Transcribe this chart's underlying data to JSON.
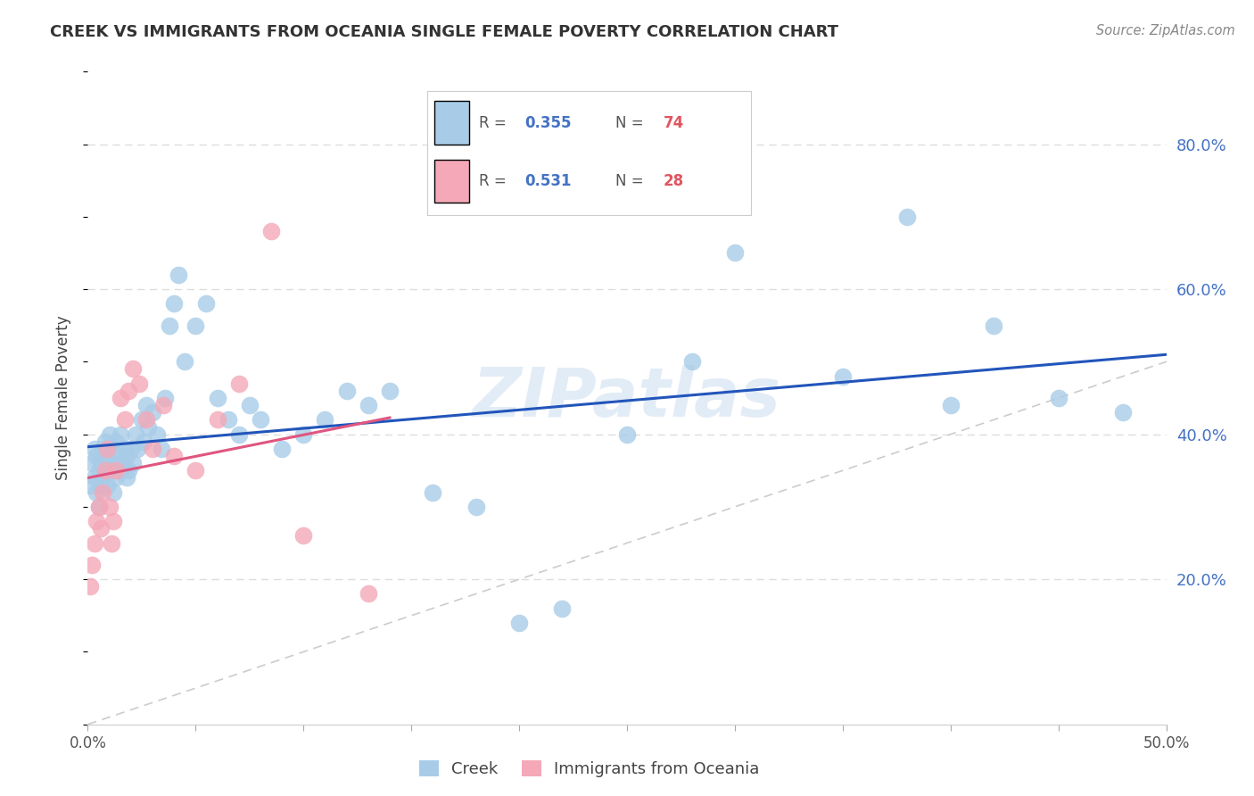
{
  "title": "CREEK VS IMMIGRANTS FROM OCEANIA SINGLE FEMALE POVERTY CORRELATION CHART",
  "source": "Source: ZipAtlas.com",
  "ylabel": "Single Female Poverty",
  "xlim": [
    0.0,
    0.5
  ],
  "ylim": [
    0.0,
    0.9
  ],
  "x_ticks": [
    0.0,
    0.05,
    0.1,
    0.15,
    0.2,
    0.25,
    0.3,
    0.35,
    0.4,
    0.45,
    0.5
  ],
  "x_tick_labels_show": [
    "0.0%",
    "",
    "",
    "",
    "",
    "",
    "",
    "",
    "",
    "",
    "50.0%"
  ],
  "y_ticks_right": [
    0.2,
    0.4,
    0.6,
    0.8
  ],
  "y_tick_labels_right": [
    "20.0%",
    "40.0%",
    "60.0%",
    "80.0%"
  ],
  "legend_color1": "#a8cce8",
  "legend_color2": "#f4a8b8",
  "watermark": "ZIPatlas",
  "background_color": "#ffffff",
  "grid_color": "#dddddd",
  "title_color": "#333333",
  "scatter_blue_color": "#a8cce8",
  "scatter_pink_color": "#f4a8b8",
  "trend_blue_color": "#2255bb",
  "trend_pink_color": "#e05580",
  "diagonal_color": "#cccccc",
  "creek_x": [
    0.001,
    0.002,
    0.003,
    0.003,
    0.004,
    0.004,
    0.005,
    0.005,
    0.006,
    0.006,
    0.007,
    0.007,
    0.008,
    0.008,
    0.009,
    0.009,
    0.01,
    0.01,
    0.011,
    0.011,
    0.012,
    0.012,
    0.013,
    0.013,
    0.014,
    0.015,
    0.015,
    0.016,
    0.017,
    0.018,
    0.018,
    0.019,
    0.02,
    0.021,
    0.022,
    0.023,
    0.025,
    0.026,
    0.027,
    0.028,
    0.03,
    0.032,
    0.034,
    0.036,
    0.038,
    0.04,
    0.042,
    0.045,
    0.05,
    0.055,
    0.06,
    0.065,
    0.07,
    0.075,
    0.08,
    0.09,
    0.1,
    0.11,
    0.12,
    0.13,
    0.14,
    0.16,
    0.18,
    0.2,
    0.22,
    0.25,
    0.28,
    0.3,
    0.35,
    0.38,
    0.4,
    0.42,
    0.45,
    0.48
  ],
  "creek_y": [
    0.33,
    0.36,
    0.34,
    0.38,
    0.32,
    0.37,
    0.3,
    0.35,
    0.36,
    0.33,
    0.34,
    0.38,
    0.35,
    0.39,
    0.33,
    0.37,
    0.36,
    0.4,
    0.35,
    0.38,
    0.32,
    0.36,
    0.34,
    0.39,
    0.37,
    0.35,
    0.4,
    0.36,
    0.38,
    0.34,
    0.37,
    0.35,
    0.38,
    0.36,
    0.4,
    0.38,
    0.42,
    0.39,
    0.44,
    0.41,
    0.43,
    0.4,
    0.38,
    0.45,
    0.55,
    0.58,
    0.62,
    0.5,
    0.55,
    0.58,
    0.45,
    0.42,
    0.4,
    0.44,
    0.42,
    0.38,
    0.4,
    0.42,
    0.46,
    0.44,
    0.46,
    0.32,
    0.3,
    0.14,
    0.16,
    0.4,
    0.5,
    0.65,
    0.48,
    0.7,
    0.44,
    0.55,
    0.45,
    0.43
  ],
  "oceania_x": [
    0.001,
    0.002,
    0.003,
    0.004,
    0.005,
    0.006,
    0.007,
    0.008,
    0.009,
    0.01,
    0.011,
    0.012,
    0.013,
    0.015,
    0.017,
    0.019,
    0.021,
    0.024,
    0.027,
    0.03,
    0.035,
    0.04,
    0.05,
    0.06,
    0.07,
    0.085,
    0.1,
    0.13
  ],
  "oceania_y": [
    0.19,
    0.22,
    0.25,
    0.28,
    0.3,
    0.27,
    0.32,
    0.35,
    0.38,
    0.3,
    0.25,
    0.28,
    0.35,
    0.45,
    0.42,
    0.46,
    0.49,
    0.47,
    0.42,
    0.38,
    0.44,
    0.37,
    0.35,
    0.42,
    0.47,
    0.68,
    0.26,
    0.18
  ]
}
